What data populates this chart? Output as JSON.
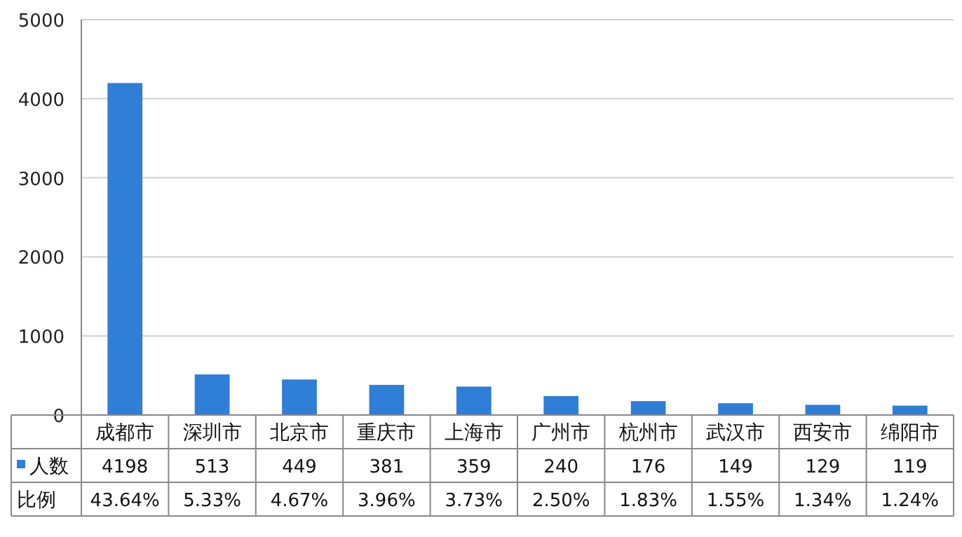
{
  "chart_data": {
    "type": "bar",
    "categories": [
      "成都市",
      "深圳市",
      "北京市",
      "重庆市",
      "上海市",
      "广州市",
      "杭州市",
      "武汉市",
      "西安市",
      "绵阳市"
    ],
    "series": [
      {
        "name": "人数",
        "color": "#2f7ed8",
        "values": [
          4198,
          513,
          449,
          381,
          359,
          240,
          176,
          149,
          129,
          119
        ]
      }
    ],
    "annotations": [
      "比例",
      "43.64%",
      "5.33%",
      "4.67%",
      "3.96%",
      "3.73%",
      "2.50%",
      "1.83%",
      "1.55%",
      "1.34%",
      "1.24%"
    ],
    "ylim": [
      0,
      5000
    ],
    "yticks": [
      0,
      1000,
      2000,
      3000,
      4000,
      5000
    ],
    "grid": "y",
    "data_labels": true,
    "legend": "bottom left"
  }
}
